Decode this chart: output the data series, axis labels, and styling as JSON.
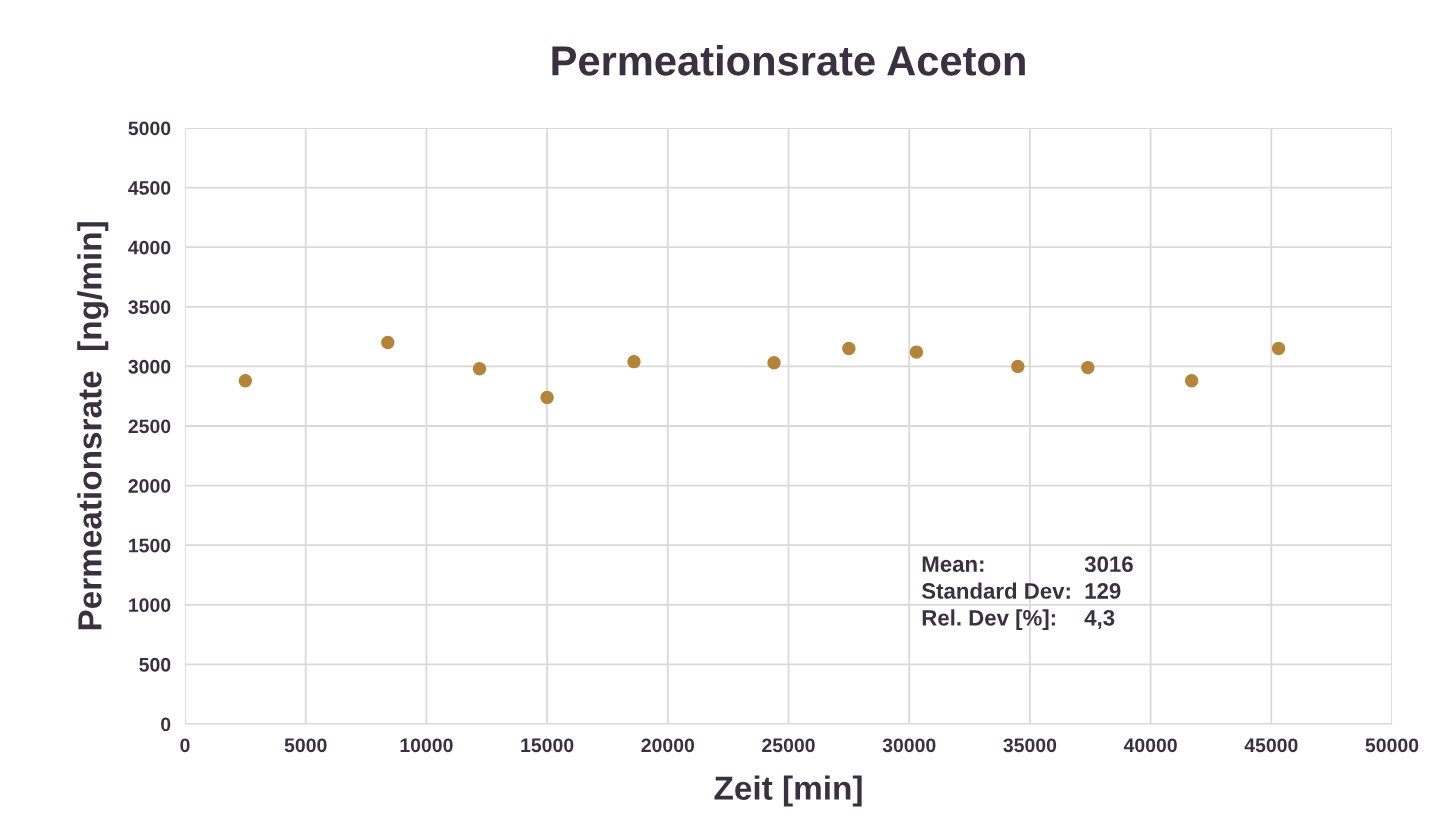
{
  "chart_data": {
    "type": "scatter",
    "title": "Permeationsrate Aceton",
    "xlabel": "Zeit [min]",
    "ylabel": "Permeationsrate  [ng/min]",
    "x": [
      2500,
      8400,
      12200,
      15000,
      18600,
      24400,
      27500,
      30300,
      34500,
      37400,
      41700,
      45300
    ],
    "series": [
      {
        "color": "#b5843a",
        "values": [
          2880,
          3200,
          2980,
          2740,
          3040,
          3030,
          3150,
          3120,
          3000,
          2990,
          2880,
          3150
        ]
      }
    ],
    "xlim": [
      0,
      50000
    ],
    "xticks": [
      0,
      5000,
      10000,
      15000,
      20000,
      25000,
      30000,
      35000,
      40000,
      45000,
      50000
    ],
    "ylim": [
      0,
      5000
    ],
    "yticks": [
      0,
      500,
      1000,
      1500,
      2000,
      2500,
      3000,
      3500,
      4000,
      4500,
      5000
    ],
    "grid": true,
    "marker": "circle",
    "annotations": [
      "Mean: 3016",
      "Standard Dev: 129",
      "Rel. Dev [%]: 4,3"
    ]
  }
}
